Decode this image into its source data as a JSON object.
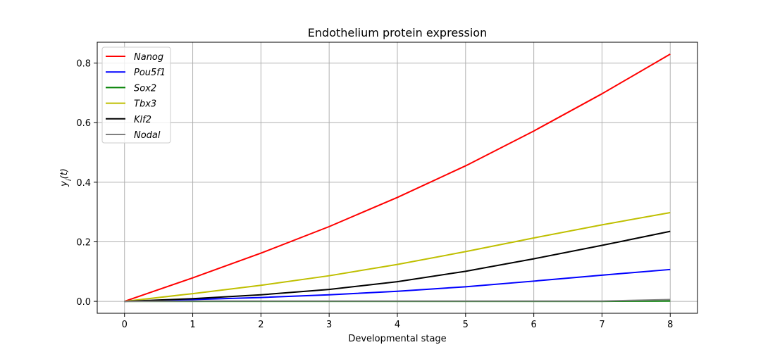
{
  "chart_data": {
    "type": "line",
    "title": "Endothelium protein expression",
    "xlabel": "Developmental stage",
    "ylabel": "y_i(t)",
    "xlim": [
      -0.4,
      8.4
    ],
    "ylim": [
      -0.04,
      0.87
    ],
    "x_ticks": [
      "0",
      "1",
      "2",
      "3",
      "4",
      "5",
      "6",
      "7",
      "8"
    ],
    "y_ticks": [
      "0.0",
      "0.2",
      "0.4",
      "0.6",
      "0.8"
    ],
    "grid": true,
    "legend_position": "top-left",
    "x": [
      0,
      1,
      2,
      3,
      4,
      5,
      6,
      7,
      8
    ],
    "series": [
      {
        "name": "Nanog",
        "color": "#ff0000",
        "values": [
          0,
          0.079,
          0.162,
          0.251,
          0.349,
          0.455,
          0.572,
          0.697,
          0.83
        ]
      },
      {
        "name": "Pou5f1",
        "color": "#0000ff",
        "values": [
          0,
          0.006,
          0.013,
          0.022,
          0.034,
          0.049,
          0.068,
          0.088,
          0.107
        ]
      },
      {
        "name": "Sox2",
        "color": "#008000",
        "values": [
          0,
          0.0,
          0.0,
          0.0,
          0.0,
          0.0,
          0.0,
          0.0,
          0.001
        ]
      },
      {
        "name": "Tbx3",
        "color": "#bfbf00",
        "values": [
          0,
          0.026,
          0.054,
          0.086,
          0.124,
          0.167,
          0.213,
          0.257,
          0.298
        ]
      },
      {
        "name": "Klf2",
        "color": "#000000",
        "values": [
          0,
          0.009,
          0.022,
          0.04,
          0.066,
          0.101,
          0.143,
          0.188,
          0.235
        ]
      },
      {
        "name": "Nodal",
        "color": "#808080",
        "values": [
          0,
          0.001,
          0.001,
          0.001,
          0.001,
          0.001,
          0.001,
          0.001,
          0.006
        ]
      }
    ]
  }
}
